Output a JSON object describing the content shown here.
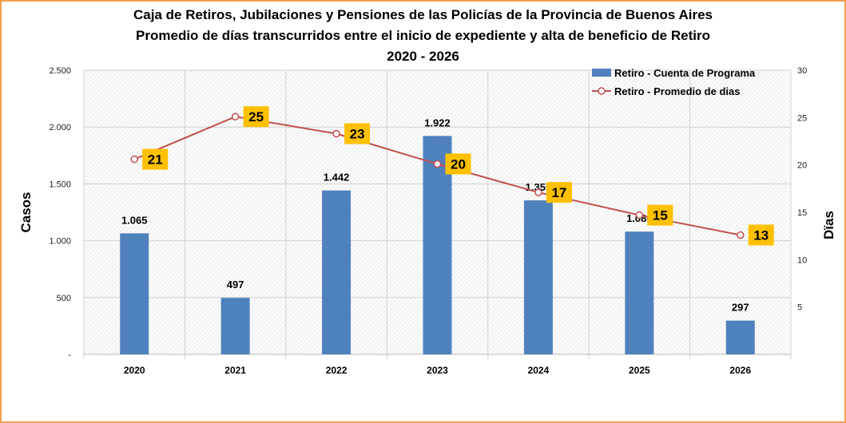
{
  "chart_data": {
    "type": "bar+line",
    "title": [
      "Caja de Retiros, Jubilaciones y Pensiones de las Policías de la Provincia de Buenos Aires",
      "Promedio de días transcurridos  entre el inicio de expediente y alta de beneficio de Retiro",
      "2020 - 2026"
    ],
    "ylabel": "Casos",
    "y2label": "Dïas",
    "categories": [
      "2020",
      "2021",
      "2022",
      "2023",
      "2024",
      "2025",
      "2026"
    ],
    "ylim": [
      0,
      2500
    ],
    "y2lim": [
      0,
      30
    ],
    "yticks": [
      "-",
      "500",
      "1.000",
      "1.500",
      "2.000",
      "2.500"
    ],
    "y2ticks": [
      "",
      "5",
      "10",
      "15",
      "20",
      "25",
      "30"
    ],
    "grid": true,
    "legend_position": "top-right",
    "series": [
      {
        "name": "Retiro - Cuenta de Programa",
        "type": "bar",
        "axis": "left",
        "color": "#4f81bd",
        "values": [
          1065,
          497,
          1442,
          1922,
          1355,
          1080,
          297
        ],
        "labels": [
          "1.065",
          "497",
          "1.442",
          "1.922",
          "1.355",
          "1.080",
          "297"
        ]
      },
      {
        "name": "Retiro - Promedio de dias",
        "type": "line",
        "axis": "right",
        "color": "#c0504d",
        "values": [
          20.6,
          25.1,
          23.3,
          20.1,
          17.1,
          14.7,
          12.6
        ],
        "labels": [
          "21",
          "25",
          "23",
          "20",
          "17",
          "15",
          "13"
        ],
        "label_bg": "#ffc000"
      }
    ]
  }
}
